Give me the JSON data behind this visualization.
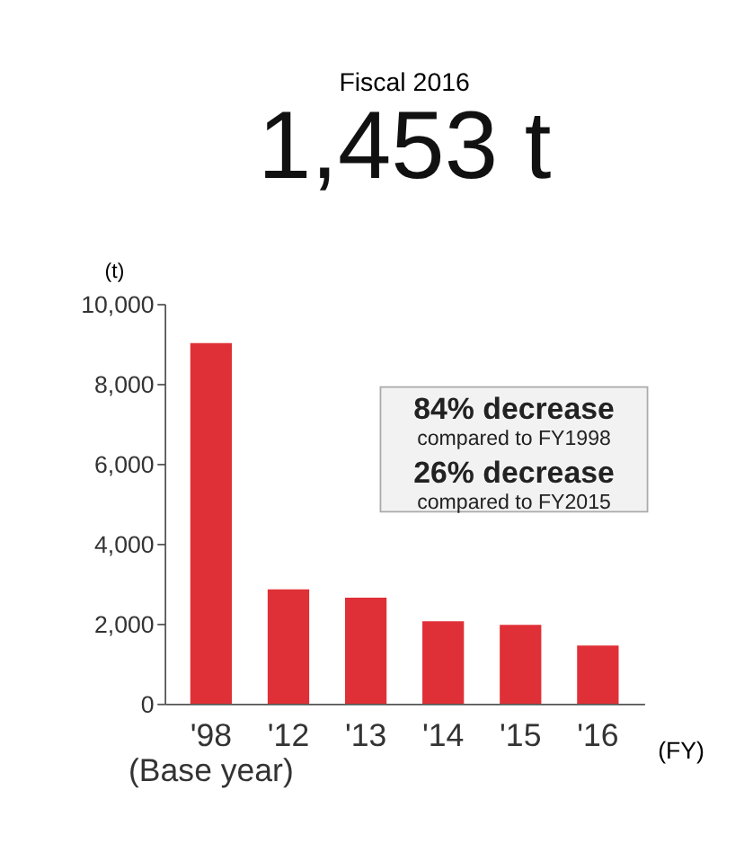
{
  "chart_data": {
    "type": "bar",
    "title": "Fiscal 2016",
    "subtitle": "1,453 t",
    "xlabel": "(FY)",
    "ylabel": "(t)",
    "categories": [
      "'98\n(Base year)",
      "'12",
      "'13",
      "'14",
      "'15",
      "'16"
    ],
    "values": [
      9020,
      2860,
      2650,
      2060,
      1970,
      1453
    ],
    "color": "#e03037",
    "ylim": [
      0,
      10000
    ],
    "yticks": [
      0,
      {
        "value": 2000,
        "label": "2,000"
      },
      {
        "value": 4000,
        "label": "4,000"
      },
      {
        "value": 6000,
        "label": "6,000"
      },
      {
        "value": 8000,
        "label": "8,000"
      },
      {
        "value": 10000,
        "label": "10,000"
      }
    ],
    "grid": false,
    "annotations": [
      "84% decrease",
      "compared to FY1998",
      "26% decrease",
      "compared to FY2015"
    ]
  }
}
